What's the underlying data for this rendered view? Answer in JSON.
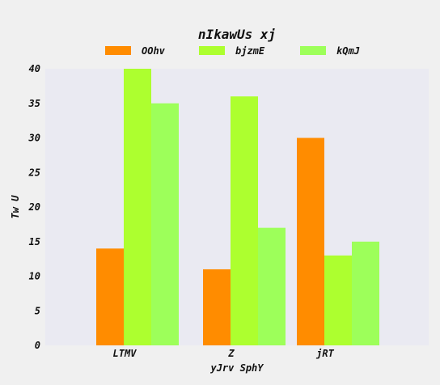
{
  "chart_data": {
    "type": "bar",
    "title": "nIkawUs xj",
    "xlabel": "yJrv SphY",
    "ylabel": "Tw U",
    "categories": [
      "LTMV",
      "Z",
      "jRT"
    ],
    "series": [
      {
        "name": "OOhv",
        "color": "#ff8c00",
        "values": [
          14,
          11,
          30
        ]
      },
      {
        "name": "bjzmE",
        "color": "#adff2f",
        "values": [
          40,
          36,
          13
        ]
      },
      {
        "name": "kQmJ",
        "color": "#9dff5a",
        "values": [
          35,
          17,
          15
        ]
      }
    ],
    "ylim": [
      0,
      40
    ],
    "yticks": [
      0,
      5,
      10,
      15,
      20,
      25,
      30,
      35,
      40
    ],
    "grid": false,
    "legend": "top-center",
    "plot_background": "#eaeaf2",
    "page_background": "#f0f0f0"
  }
}
